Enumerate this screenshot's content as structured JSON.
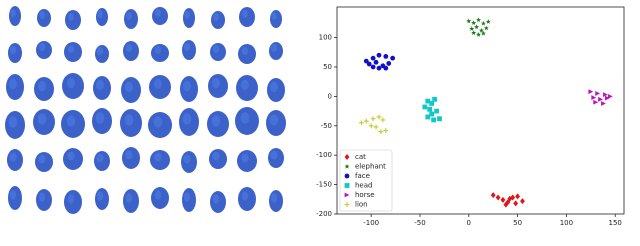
{
  "chart_data": {
    "type": "scatter",
    "xlim": [
      -135,
      159
    ],
    "ylim": [
      -200,
      152
    ],
    "xticks": [
      -100,
      -50,
      0,
      50,
      100,
      150
    ],
    "yticks": [
      -200,
      -150,
      -100,
      -50,
      0,
      50,
      100
    ],
    "legend": "lower left",
    "series": [
      {
        "name": "cat",
        "color": "#e0141a",
        "marker": "diamond",
        "x": [
          25,
          30,
          35,
          40,
          45,
          50,
          55,
          38,
          48,
          42
        ],
        "y": [
          -168,
          -172,
          -176,
          -180,
          -172,
          -170,
          -178,
          -184,
          -182,
          -174
        ]
      },
      {
        "name": "elephant",
        "color": "#1a7a1a",
        "marker": "star",
        "x": [
          0,
          5,
          10,
          15,
          20,
          3,
          8,
          13,
          18,
          10,
          5,
          15
        ],
        "y": [
          128,
          125,
          130,
          124,
          127,
          115,
          118,
          112,
          116,
          105,
          108,
          107
        ]
      },
      {
        "name": "face",
        "color": "#1010c8",
        "marker": "circle",
        "x": [
          -105,
          -98,
          -92,
          -85,
          -78,
          -102,
          -95,
          -88,
          -82,
          -92,
          -98,
          -85
        ],
        "y": [
          60,
          65,
          70,
          68,
          65,
          55,
          58,
          52,
          56,
          48,
          50,
          48
        ]
      },
      {
        "name": "head",
        "color": "#10c8c8",
        "marker": "square",
        "x": [
          -42,
          -38,
          -35,
          -45,
          -40,
          -33,
          -38,
          -42,
          -30,
          -36
        ],
        "y": [
          -8,
          -12,
          -5,
          -18,
          -22,
          -25,
          -30,
          -35,
          -38,
          -40
        ]
      },
      {
        "name": "horse",
        "color": "#c010c0",
        "marker": "triangle-right",
        "x": [
          125,
          132,
          140,
          145,
          128,
          135,
          142,
          130,
          138
        ],
        "y": [
          8,
          5,
          3,
          0,
          -2,
          -5,
          -3,
          -10,
          -12
        ]
      },
      {
        "name": "lion",
        "color": "#c8c830",
        "marker": "plus",
        "x": [
          -110,
          -105,
          -98,
          -92,
          -88,
          -100,
          -95,
          -85,
          -90
        ],
        "y": [
          -45,
          -42,
          -38,
          -35,
          -40,
          -50,
          -52,
          -58,
          -60
        ]
      }
    ]
  }
}
